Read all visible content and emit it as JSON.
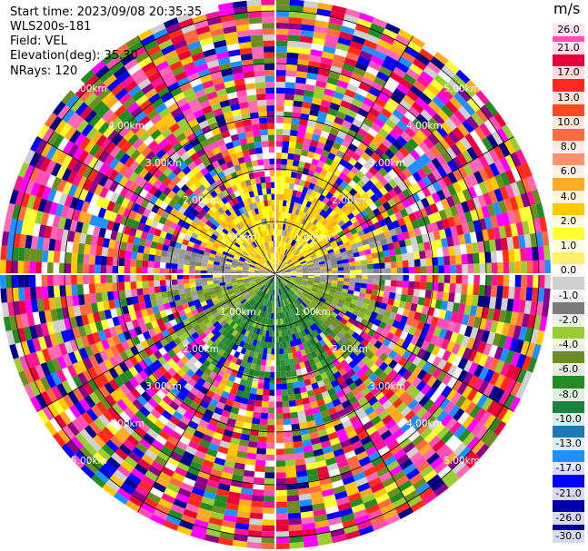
{
  "header": {
    "start_time": "Start time: 2023/09/08 20:35:35",
    "instrument": "WLS200s-181",
    "field": "Field: VEL",
    "elevation": "Elevation(deg): 35.30",
    "nrays": "NRays: 120"
  },
  "colorbar": {
    "unit": "m/s",
    "ticks": [
      "26.0",
      "21.0",
      "17.0",
      "13.0",
      "10.0",
      "8.0",
      "6.0",
      "4.0",
      "2.0",
      "1.0",
      "0.0",
      "-1.0",
      "-2.0",
      "-4.0",
      "-6.0",
      "-8.0",
      "-10.0",
      "-13.0",
      "-17.0",
      "-21.0",
      "-26.0",
      "-30.0"
    ],
    "colors": [
      "#ff4fb4",
      "#e8003a",
      "#ff2a1a",
      "#ff4a20",
      "#ff6a40",
      "#ff9070",
      "#ffaa22",
      "#ffc800",
      "#ffff33",
      "#fff070",
      "#cfcfcf",
      "#7a7a7a",
      "#9acd32",
      "#6b8e23",
      "#228b22",
      "#208040",
      "#1f78b4",
      "#1e90ff",
      "#0000ff",
      "#0000aa",
      "#00008b",
      "#000050"
    ]
  },
  "ring_labels": [
    "1.00km",
    "2.00km",
    "3.00km",
    "4.00km",
    "5.00km"
  ],
  "palettes": {
    "inner_warm": [
      "#ffff00",
      "#ffff33",
      "#ffd700",
      "#ffc800",
      "#ffaa22"
    ],
    "inner_gray": [
      "#9a9a9a",
      "#8c8c8c",
      "#a6a6a6",
      "#7f7f7f"
    ],
    "inner_green": [
      "#9acd32",
      "#6b8e23",
      "#88b030",
      "#7fa82a"
    ],
    "inner_dkgreen": [
      "#228b22",
      "#2e8b3e",
      "#1f7a2f",
      "#3a9a4a"
    ],
    "noise": [
      "#ff1493",
      "#ff4fb4",
      "#e8003a",
      "#ff2a1a",
      "#ff6a40",
      "#ffaa22",
      "#ffff33",
      "#ffc800",
      "#9acd32",
      "#228b22",
      "#1e90ff",
      "#0000ff",
      "#00008b",
      "#8b008b",
      "#ff00ff",
      "#ff69b4",
      "#ffffff",
      "#d0d0d0",
      "#6b8e23"
    ]
  }
}
